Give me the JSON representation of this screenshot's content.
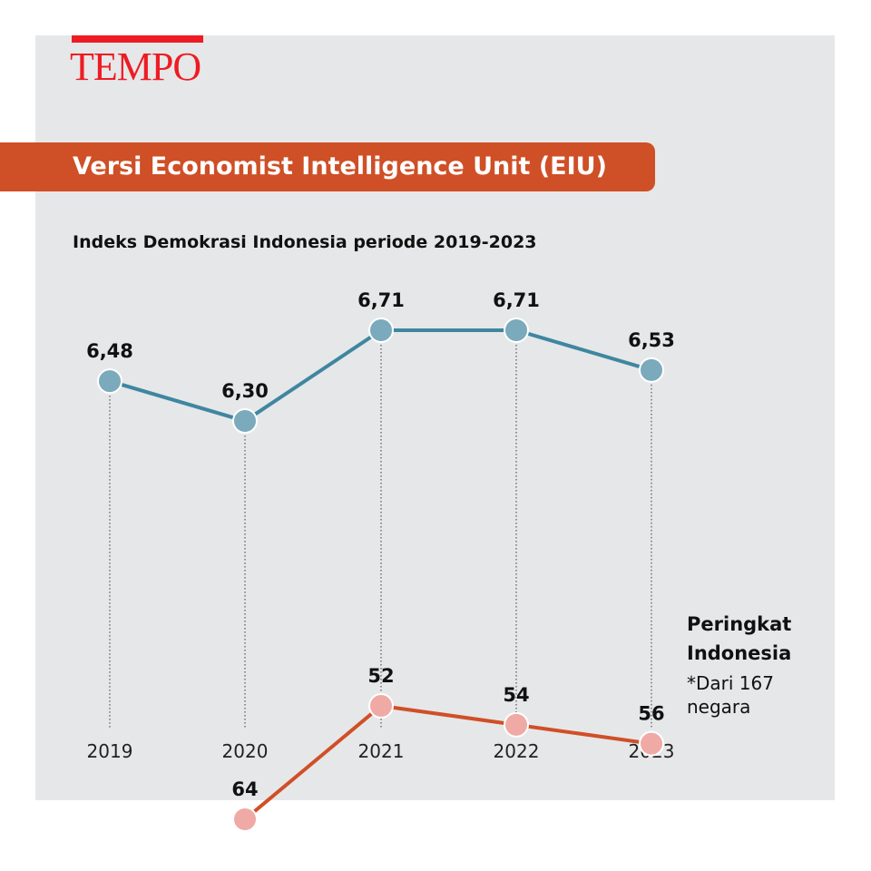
{
  "brand": "TEMPO",
  "banner": "Versi Economist Intelligence Unit (EIU)",
  "chart_data": {
    "type": "line",
    "title": "Indeks Demokrasi Indonesia periode 2019-2023",
    "categories": [
      "2019",
      "2020",
      "2021",
      "2022",
      "2023"
    ],
    "series": [
      {
        "name": "Indeks Demokrasi",
        "values": [
          6.48,
          6.3,
          6.71,
          6.71,
          6.53
        ],
        "labels": [
          "6,48",
          "6,30",
          "6,71",
          "6,71",
          "6,53"
        ],
        "color": "#3f86a0",
        "marker": "#7aaabc"
      },
      {
        "name": "Peringkat Indonesia",
        "values": [
          null,
          64,
          52,
          54,
          56
        ],
        "labels": [
          null,
          "64",
          "52",
          "54",
          "56"
        ],
        "color": "#d04f27",
        "marker": "#f0aaa5"
      }
    ],
    "grid": "dotted vertical lines per year",
    "legend": {
      "title": "Peringkat Indonesia",
      "note": "*Dari 167 negara"
    }
  }
}
